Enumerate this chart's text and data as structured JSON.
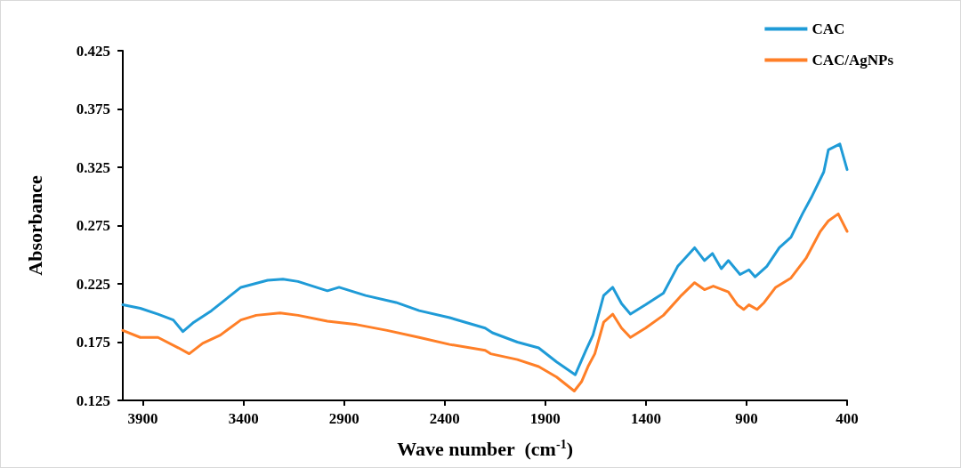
{
  "chart_data": {
    "type": "line",
    "xlabel": "Wave number  (cm$^{-1}$)",
    "ylabel": "Absorbance",
    "xlim": [
      4000,
      400
    ],
    "xticks": [
      3900,
      3400,
      2900,
      2400,
      1900,
      1400,
      900,
      400
    ],
    "ylim": [
      0.125,
      0.425
    ],
    "yticks": [
      0.125,
      0.175,
      0.225,
      0.275,
      0.325,
      0.375,
      0.425
    ],
    "grid": false,
    "legend": "top right",
    "marker": "none",
    "line_style": "solid",
    "series": [
      {
        "name": "CAC",
        "color": "#1f9bd7",
        "x": [
          4000,
          3913,
          3825,
          3749,
          3701,
          3647,
          3559,
          3413,
          3280,
          3204,
          3129,
          2983,
          2925,
          2793,
          2642,
          2527,
          2376,
          2199,
          2163,
          2039,
          1933,
          1844,
          1751,
          1698,
          1663,
          1610,
          1565,
          1521,
          1477,
          1402,
          1313,
          1242,
          1158,
          1109,
          1069,
          1025,
          990,
          932,
          888,
          857,
          799,
          737,
          679,
          622,
          578,
          516,
          493,
          436,
          400
        ],
        "values": [
          0.207,
          0.204,
          0.199,
          0.194,
          0.184,
          0.192,
          0.202,
          0.222,
          0.228,
          0.229,
          0.227,
          0.219,
          0.222,
          0.215,
          0.209,
          0.202,
          0.196,
          0.187,
          0.183,
          0.175,
          0.17,
          0.158,
          0.147,
          0.168,
          0.181,
          0.215,
          0.222,
          0.208,
          0.199,
          0.207,
          0.217,
          0.24,
          0.256,
          0.245,
          0.251,
          0.238,
          0.245,
          0.233,
          0.237,
          0.231,
          0.24,
          0.256,
          0.265,
          0.285,
          0.299,
          0.321,
          0.34,
          0.345,
          0.323
        ]
      },
      {
        "name": "CAC/AgNPs",
        "color": "#ff7f27",
        "x": [
          4000,
          3913,
          3825,
          3723,
          3670,
          3603,
          3515,
          3413,
          3337,
          3218,
          3129,
          2983,
          2837,
          2686,
          2527,
          2376,
          2199,
          2172,
          2039,
          1933,
          1844,
          1756,
          1720,
          1685,
          1654,
          1610,
          1565,
          1521,
          1477,
          1402,
          1313,
          1224,
          1158,
          1109,
          1065,
          990,
          945,
          914,
          888,
          848,
          812,
          755,
          679,
          604,
          533,
          493,
          444,
          400
        ],
        "values": [
          0.185,
          0.179,
          0.179,
          0.17,
          0.165,
          0.174,
          0.181,
          0.194,
          0.198,
          0.2,
          0.198,
          0.193,
          0.19,
          0.185,
          0.179,
          0.173,
          0.168,
          0.165,
          0.16,
          0.154,
          0.145,
          0.133,
          0.141,
          0.155,
          0.165,
          0.192,
          0.199,
          0.187,
          0.179,
          0.187,
          0.198,
          0.215,
          0.226,
          0.22,
          0.223,
          0.218,
          0.207,
          0.203,
          0.207,
          0.203,
          0.209,
          0.222,
          0.23,
          0.247,
          0.27,
          0.279,
          0.285,
          0.27
        ]
      }
    ]
  }
}
